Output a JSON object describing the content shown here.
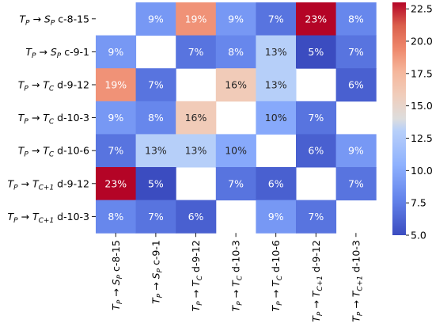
{
  "chart_data": {
    "type": "heatmap",
    "title": "",
    "xlabel": "",
    "ylabel": "",
    "row_labels": [
      [
        "T",
        "P",
        "S",
        "P",
        " c-8-15"
      ],
      [
        "T",
        "P",
        "S",
        "P",
        " c-9-1"
      ],
      [
        "T",
        "P",
        "T",
        "C",
        " d-9-12"
      ],
      [
        "T",
        "P",
        "T",
        "C",
        " d-10-3"
      ],
      [
        "T",
        "P",
        "T",
        "C",
        " d-10-6"
      ],
      [
        "T",
        "P",
        "T",
        "C+1",
        " d-9-12"
      ],
      [
        "T",
        "P",
        "T",
        "C+1",
        " d-10-3"
      ]
    ],
    "col_labels": [
      [
        "T",
        "P",
        "S",
        "P",
        " c-8-15"
      ],
      [
        "T",
        "P",
        "S",
        "P",
        " c-9-1"
      ],
      [
        "T",
        "P",
        "T",
        "C",
        " d-9-12"
      ],
      [
        "T",
        "P",
        "T",
        "C",
        " d-10-3"
      ],
      [
        "T",
        "P",
        "T",
        "C",
        " d-10-6"
      ],
      [
        "T",
        "P",
        "T",
        "C+1",
        " d-9-12"
      ],
      [
        "T",
        "P",
        "T",
        "C+1",
        " d-10-3"
      ]
    ],
    "values": [
      [
        null,
        9,
        19,
        9,
        7,
        23,
        8
      ],
      [
        9,
        null,
        7,
        8,
        13,
        5,
        7
      ],
      [
        19,
        7,
        null,
        16,
        13,
        null,
        6
      ],
      [
        9,
        8,
        16,
        null,
        10,
        7,
        null
      ],
      [
        7,
        13,
        13,
        10,
        null,
        6,
        9
      ],
      [
        23,
        5,
        null,
        7,
        6,
        null,
        7
      ],
      [
        8,
        7,
        6,
        null,
        9,
        7,
        null
      ]
    ],
    "value_suffix": "%",
    "colormap": "coolwarm",
    "color_range": [
      5,
      23
    ],
    "colorbar_ticks": [
      5.0,
      7.5,
      10.0,
      12.5,
      15.0,
      17.5,
      20.0,
      22.5
    ],
    "colorbar_tick_labels": [
      "5.0",
      "7.5",
      "10.0",
      "12.5",
      "15.0",
      "17.5",
      "20.0",
      "22.5"
    ],
    "grid": false,
    "legend": "colorbar-right"
  }
}
